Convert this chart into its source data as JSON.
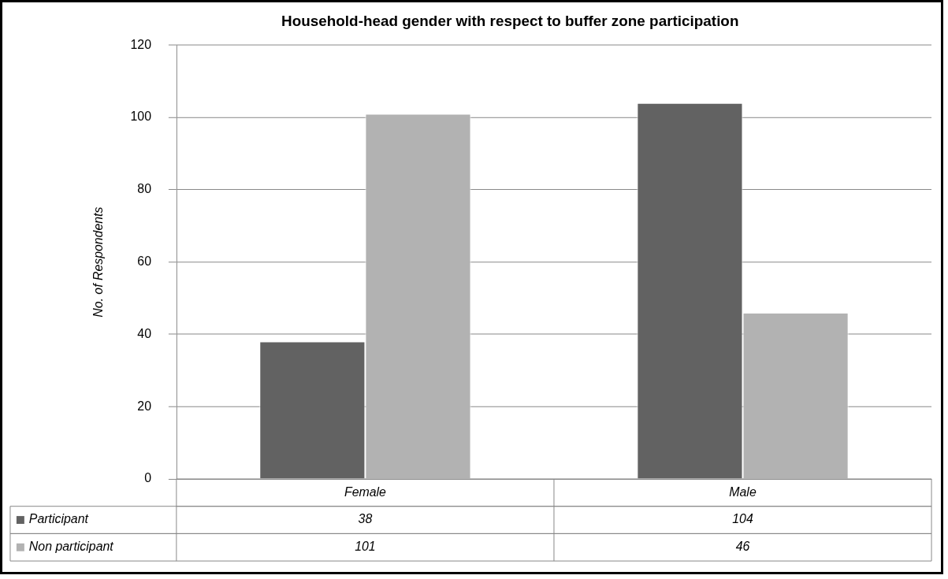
{
  "chart_data": {
    "type": "bar",
    "title": "Household-head gender with respect to buffer zone participation",
    "ylabel": "No. of Respondents",
    "categories": [
      "Female",
      "Male"
    ],
    "series": [
      {
        "name": "Participant",
        "color": "#626262",
        "values": [
          38,
          104
        ]
      },
      {
        "name": "Non participant",
        "color": "#b2b2b2",
        "values": [
          101,
          46
        ]
      }
    ],
    "ylim": [
      0,
      120
    ],
    "yticks": [
      0,
      20,
      40,
      60,
      80,
      100,
      120
    ],
    "grid": "y",
    "legend": "bottom",
    "data_labels": true
  }
}
